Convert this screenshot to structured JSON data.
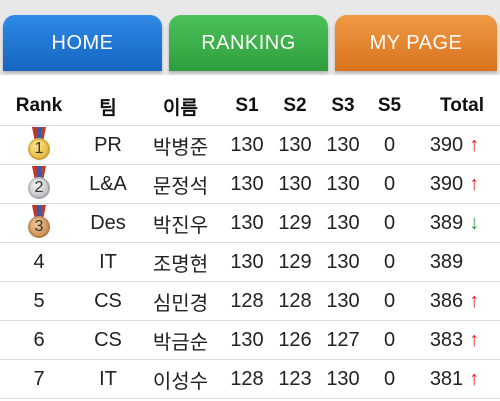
{
  "nav": {
    "home": "HOME",
    "ranking": "RANKING",
    "mypage": "MY PAGE"
  },
  "colors": {
    "home_tab": "#1e74d2",
    "ranking_tab": "#3aae48",
    "mypage_tab": "#e58530",
    "arrow_up": "#e02020",
    "arrow_down": "#2e9e3c"
  },
  "table": {
    "headers": {
      "rank": "Rank",
      "team": "팀",
      "name": "이름",
      "s1": "S1",
      "s2": "S2",
      "s3": "S3",
      "s5": "S5",
      "total": "Total"
    },
    "rows": [
      {
        "rank": "1",
        "medal": "gold-medal-icon",
        "team": "PR",
        "name": "박병준",
        "s1": "130",
        "s2": "130",
        "s3": "130",
        "s5": "0",
        "total": "390",
        "trend": "↑",
        "trend_dir": "up"
      },
      {
        "rank": "2",
        "medal": "silver-medal-icon",
        "team": "L&A",
        "name": "문정석",
        "s1": "130",
        "s2": "130",
        "s3": "130",
        "s5": "0",
        "total": "390",
        "trend": "↑",
        "trend_dir": "up"
      },
      {
        "rank": "3",
        "medal": "bronze-medal-icon",
        "team": "Des",
        "name": "박진우",
        "s1": "130",
        "s2": "129",
        "s3": "130",
        "s5": "0",
        "total": "389",
        "trend": "↓",
        "trend_dir": "down"
      },
      {
        "rank": "4",
        "medal": "",
        "team": "IT",
        "name": "조명현",
        "s1": "130",
        "s2": "129",
        "s3": "130",
        "s5": "0",
        "total": "389",
        "trend": "",
        "trend_dir": "none"
      },
      {
        "rank": "5",
        "medal": "",
        "team": "CS",
        "name": "심민경",
        "s1": "128",
        "s2": "128",
        "s3": "130",
        "s5": "0",
        "total": "386",
        "trend": "↑",
        "trend_dir": "up"
      },
      {
        "rank": "6",
        "medal": "",
        "team": "CS",
        "name": "박금순",
        "s1": "130",
        "s2": "126",
        "s3": "127",
        "s5": "0",
        "total": "383",
        "trend": "↑",
        "trend_dir": "up"
      },
      {
        "rank": "7",
        "medal": "",
        "team": "IT",
        "name": "이성수",
        "s1": "128",
        "s2": "123",
        "s3": "130",
        "s5": "0",
        "total": "381",
        "trend": "↑",
        "trend_dir": "up"
      }
    ]
  }
}
